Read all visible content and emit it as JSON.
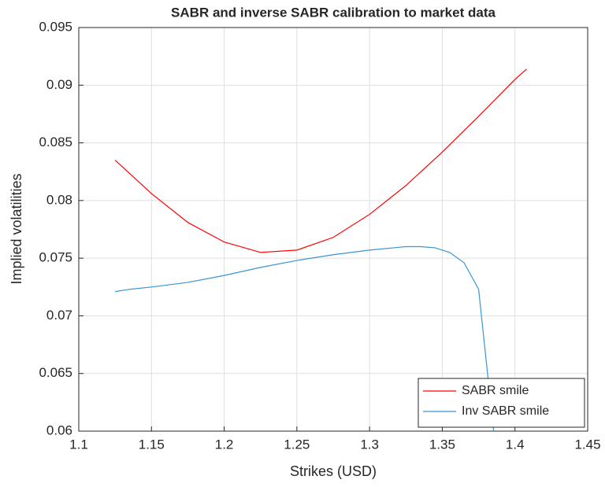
{
  "chart_data": {
    "type": "line",
    "title": "SABR and inverse SABR calibration to market data",
    "x_label": "Strikes (USD)",
    "y_label": "Implied volatilities",
    "series": [
      {
        "name": "SABR smile",
        "color": "#ff0000",
        "x": [
          1.125,
          1.15,
          1.175,
          1.2,
          1.225,
          1.25,
          1.275,
          1.3,
          1.325,
          1.35,
          1.375,
          1.4,
          1.408
        ],
        "values": [
          0.0835,
          0.0806,
          0.0781,
          0.0764,
          0.0755,
          0.0757,
          0.0768,
          0.0788,
          0.0813,
          0.0842,
          0.0873,
          0.0905,
          0.0914
        ]
      },
      {
        "name": "Inv SABR smile",
        "color": "#3b95d0",
        "x": [
          1.125,
          1.135,
          1.15,
          1.175,
          1.2,
          1.225,
          1.25,
          1.275,
          1.3,
          1.325,
          1.335,
          1.345,
          1.355,
          1.365,
          1.375,
          1.387
        ],
        "values": [
          0.0721,
          0.0723,
          0.0725,
          0.0729,
          0.0735,
          0.0742,
          0.0748,
          0.0753,
          0.0757,
          0.076,
          0.076,
          0.0759,
          0.0755,
          0.0746,
          0.0723,
          0.058
        ]
      }
    ],
    "xlim": [
      1.1,
      1.45
    ],
    "xticks": [
      1.1,
      1.15,
      1.2,
      1.25,
      1.3,
      1.35,
      1.4,
      1.45
    ],
    "ylim": [
      0.06,
      0.095
    ],
    "yticks": [
      {
        "value": 0.06,
        "label": "0.06"
      },
      0.065,
      0.07,
      0.075,
      0.08,
      0.085,
      0.09,
      0.095
    ],
    "grid": true,
    "legend": "southeast"
  }
}
